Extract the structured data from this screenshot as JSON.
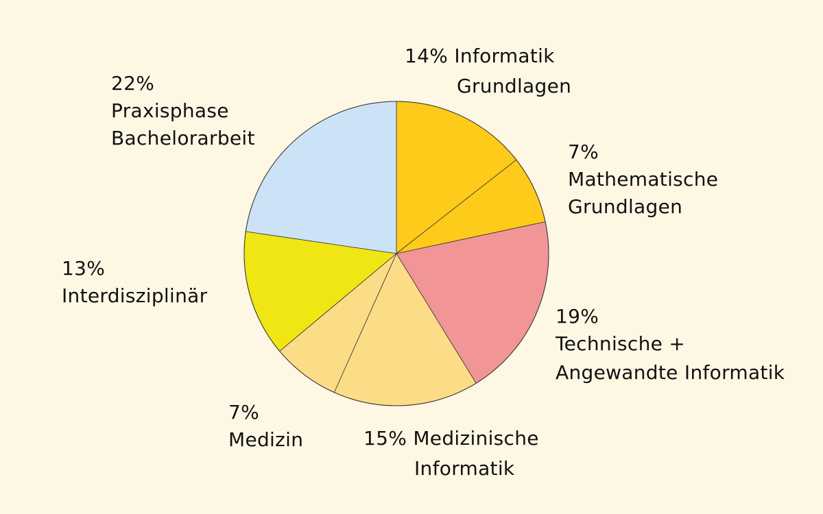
{
  "chart_data": {
    "type": "pie",
    "start_angle": "12 o'clock",
    "direction": "clockwise",
    "slices": [
      {
        "value": 14,
        "color": "#fecb1a",
        "lines": [
          "14% Informatik",
          "Grundlagen"
        ]
      },
      {
        "value": 7,
        "color": "#fecb1a",
        "lines": [
          "7%",
          "Mathematische",
          "Grundlagen"
        ]
      },
      {
        "value": 19,
        "color": "#f29597",
        "lines": [
          "19%",
          "Technische +",
          "Angewandte Informatik"
        ]
      },
      {
        "value": 15,
        "color": "#fddc88",
        "lines": [
          "15% Medizinische",
          "Informatik"
        ]
      },
      {
        "value": 7,
        "color": "#fddc88",
        "lines": [
          "7%",
          "Medizin"
        ]
      },
      {
        "value": 13,
        "color": "#f0e614",
        "lines": [
          "13%",
          "Interdisziplinär"
        ]
      },
      {
        "value": 22,
        "color": "#cce3f7",
        "lines": [
          "22%",
          "Praxisphase",
          "Bachelorarbeit"
        ]
      }
    ],
    "background": "#fef7e4",
    "legend": "none"
  }
}
